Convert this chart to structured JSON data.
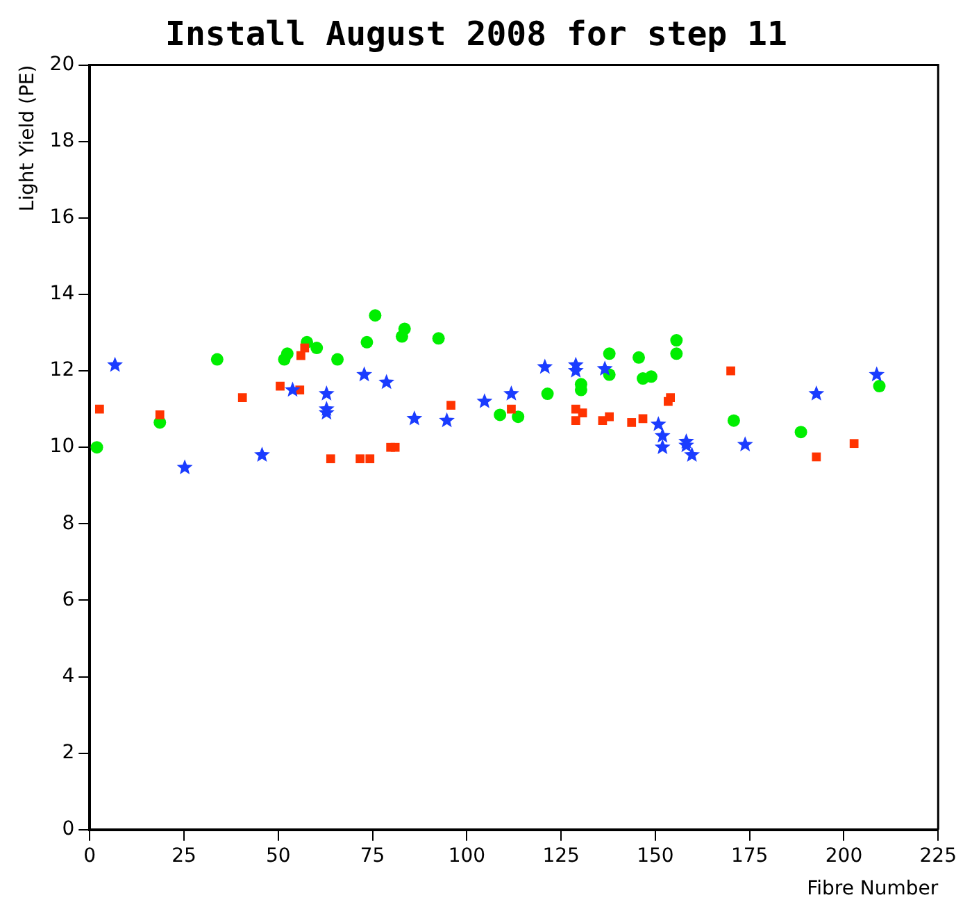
{
  "chart_data": {
    "type": "scatter",
    "title": "Install August 2008 for step 11",
    "xlabel": "Fibre Number",
    "ylabel": "Light Yield (PE)",
    "xlim": [
      0,
      225
    ],
    "xticks": [
      0,
      25,
      50,
      75,
      100,
      125,
      150,
      175,
      200,
      225
    ],
    "ylim": [
      0,
      20
    ],
    "yticks": [
      0,
      2,
      4,
      6,
      8,
      10,
      12,
      14,
      16,
      18,
      20
    ],
    "grid": false,
    "legend": false,
    "series": [
      {
        "color": "#ff3300",
        "marker": "square",
        "x": [
          2.6,
          18.6,
          40.5,
          50.5,
          55.7,
          56,
          57,
          63.9,
          71.7,
          74.3,
          79.8,
          81,
          95.8,
          111.8,
          128.9,
          128.9,
          130.7,
          136,
          137.8,
          143.7,
          146.7,
          153.4,
          154,
          170,
          192.7,
          202.7
        ],
        "values": [
          11.0,
          10.85,
          11.3,
          11.6,
          11.5,
          12.4,
          12.6,
          9.7,
          9.7,
          9.7,
          10.0,
          10.0,
          11.1,
          11.0,
          11.0,
          10.7,
          10.9,
          10.7,
          10.8,
          10.65,
          10.75,
          11.2,
          11.3,
          12.0,
          9.75,
          10.1
        ]
      },
      {
        "color": "#1a3cff",
        "marker": "star",
        "x": [
          6.7,
          25.2,
          45.7,
          53.8,
          62.8,
          62.8,
          62.8,
          72.8,
          78.7,
          86.1,
          94.7,
          104.7,
          111.8,
          120.7,
          128.9,
          128.9,
          136.6,
          150.8,
          151.9,
          151.9,
          158.2,
          158.2,
          159.7,
          173.8,
          192.7,
          208.7
        ],
        "values": [
          12.15,
          9.47,
          9.8,
          11.5,
          11.4,
          11.0,
          10.9,
          11.9,
          11.7,
          10.75,
          10.7,
          11.2,
          11.4,
          12.1,
          12.15,
          12.0,
          12.05,
          10.6,
          10.3,
          10.0,
          10.15,
          10.05,
          9.8,
          10.07,
          11.4,
          11.9
        ]
      },
      {
        "color": "#00ee00",
        "marker": "circle",
        "x": [
          1.9,
          18.6,
          33.8,
          51.6,
          52.4,
          57.6,
          60.2,
          65.7,
          73.5,
          75.7,
          82.8,
          83.5,
          92.5,
          108.8,
          113.6,
          121.4,
          130.3,
          130.3,
          137.8,
          137.8,
          145.6,
          146.7,
          148.9,
          155.6,
          155.6,
          170.8,
          188.6,
          209.4
        ],
        "values": [
          10.0,
          10.65,
          12.3,
          12.3,
          12.45,
          12.75,
          12.6,
          12.3,
          12.75,
          13.45,
          12.9,
          13.1,
          12.85,
          10.85,
          10.8,
          11.4,
          11.65,
          11.5,
          12.45,
          11.9,
          12.35,
          11.8,
          11.85,
          12.8,
          12.45,
          10.7,
          10.4,
          11.6
        ]
      }
    ]
  }
}
